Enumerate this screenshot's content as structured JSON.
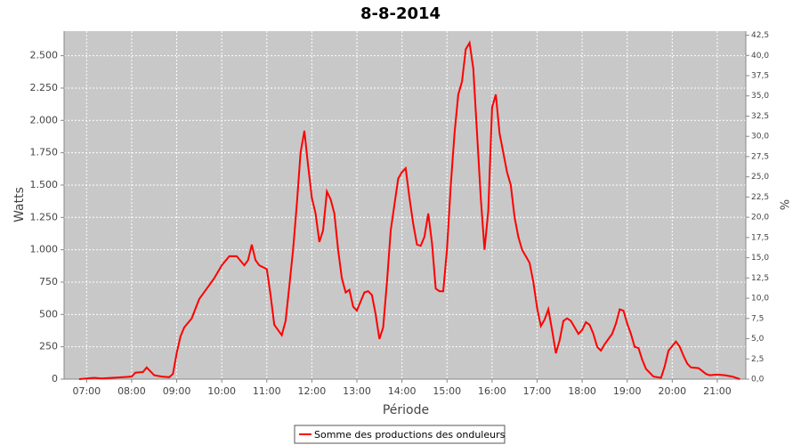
{
  "chart_data": {
    "type": "line",
    "title": "8-8-2014",
    "xlabel": "Période",
    "ylabel": "Watts",
    "y2label": "%",
    "x": [
      "06:50",
      "07:10",
      "07:20",
      "08:00",
      "08:05",
      "08:15",
      "08:20",
      "08:30",
      "08:40",
      "08:50",
      "08:55",
      "09:00",
      "09:05",
      "09:10",
      "09:20",
      "09:30",
      "09:40",
      "09:50",
      "10:00",
      "10:10",
      "10:20",
      "10:30",
      "10:35",
      "10:40",
      "10:45",
      "10:50",
      "11:00",
      "11:05",
      "11:10",
      "11:15",
      "11:20",
      "11:25",
      "11:30",
      "11:35",
      "11:40",
      "11:45",
      "11:50",
      "11:55",
      "12:00",
      "12:05",
      "12:10",
      "12:15",
      "12:20",
      "12:25",
      "12:30",
      "12:35",
      "12:40",
      "12:45",
      "12:50",
      "12:55",
      "13:00",
      "13:05",
      "13:10",
      "13:15",
      "13:20",
      "13:25",
      "13:30",
      "13:35",
      "13:40",
      "13:45",
      "13:50",
      "13:55",
      "14:00",
      "14:05",
      "14:10",
      "14:15",
      "14:20",
      "14:25",
      "14:30",
      "14:35",
      "14:40",
      "14:45",
      "14:50",
      "14:55",
      "15:00",
      "15:05",
      "15:10",
      "15:15",
      "15:20",
      "15:25",
      "15:30",
      "15:35",
      "15:40",
      "15:45",
      "15:50",
      "15:55",
      "16:00",
      "16:05",
      "16:10",
      "16:15",
      "16:20",
      "16:25",
      "16:30",
      "16:35",
      "16:40",
      "16:45",
      "16:50",
      "16:55",
      "17:00",
      "17:05",
      "17:10",
      "17:15",
      "17:20",
      "17:25",
      "17:30",
      "17:35",
      "17:40",
      "17:45",
      "17:50",
      "17:55",
      "18:00",
      "18:05",
      "18:10",
      "18:15",
      "18:20",
      "18:25",
      "18:30",
      "18:40",
      "18:45",
      "18:50",
      "18:55",
      "19:00",
      "19:05",
      "19:10",
      "19:15",
      "19:20",
      "19:25",
      "19:35",
      "19:45",
      "19:50",
      "19:55",
      "20:05",
      "20:10",
      "20:15",
      "20:20",
      "20:25",
      "20:35",
      "20:45",
      "20:50",
      "21:00",
      "21:10",
      "21:20",
      "21:30"
    ],
    "series": [
      {
        "name": "Somme des productions des onduleurs",
        "color": "#ff0000",
        "values": [
          0,
          10,
          5,
          20,
          50,
          55,
          90,
          30,
          20,
          15,
          40,
          200,
          330,
          400,
          470,
          620,
          700,
          780,
          880,
          950,
          950,
          880,
          920,
          1040,
          920,
          880,
          850,
          650,
          420,
          380,
          340,
          450,
          720,
          1000,
          1350,
          1750,
          1920,
          1650,
          1400,
          1280,
          1060,
          1150,
          1450,
          1390,
          1280,
          1000,
          780,
          670,
          690,
          560,
          530,
          600,
          670,
          680,
          650,
          500,
          310,
          400,
          750,
          1150,
          1350,
          1550,
          1600,
          1630,
          1400,
          1200,
          1040,
          1030,
          1100,
          1280,
          1050,
          700,
          680,
          680,
          1000,
          1500,
          1900,
          2200,
          2300,
          2550,
          2600,
          2400,
          1900,
          1400,
          1000,
          1300,
          2100,
          2200,
          1900,
          1750,
          1600,
          1500,
          1250,
          1100,
          1000,
          950,
          900,
          750,
          550,
          410,
          460,
          540,
          380,
          200,
          300,
          450,
          470,
          450,
          400,
          350,
          380,
          440,
          420,
          350,
          250,
          220,
          270,
          350,
          430,
          540,
          530,
          430,
          350,
          250,
          240,
          150,
          80,
          20,
          10,
          100,
          220,
          290,
          250,
          180,
          120,
          90,
          85,
          40,
          30,
          35,
          30,
          20,
          0
        ]
      }
    ],
    "xlim": [
      "06:30",
      "21:38"
    ],
    "xticks": [
      "07:00",
      "08:00",
      "09:00",
      "10:00",
      "11:00",
      "12:00",
      "13:00",
      "14:00",
      "15:00",
      "16:00",
      "17:00",
      "18:00",
      "19:00",
      "20:00",
      "21:00"
    ],
    "ylim": [
      0,
      2690
    ],
    "yticks": [
      0,
      250,
      500,
      750,
      {
        "value": 1000,
        "label": "1.000"
      },
      {
        "value": 1250,
        "label": "1.250"
      },
      {
        "value": 1500,
        "label": "1.500"
      },
      {
        "value": 1750,
        "label": "1.750"
      },
      {
        "value": 2000,
        "label": "2.000"
      },
      {
        "value": 2250,
        "label": "2.250"
      },
      {
        "value": 2500,
        "label": "2.500"
      }
    ],
    "y2lim": [
      0,
      43
    ],
    "y2ticks": [
      {
        "value": 0,
        "label": "0,0"
      },
      {
        "value": 2.5,
        "label": "2,5"
      },
      {
        "value": 5,
        "label": "5,0"
      },
      {
        "value": 7.5,
        "label": "7,5"
      },
      {
        "value": 10,
        "label": "10,0"
      },
      {
        "value": 12.5,
        "label": "12,5"
      },
      {
        "value": 15,
        "label": "15,0"
      },
      {
        "value": 17.5,
        "label": "17,5"
      },
      {
        "value": 20,
        "label": "20,0"
      },
      {
        "value": 22.5,
        "label": "22,5"
      },
      {
        "value": 25,
        "label": "25,0"
      },
      {
        "value": 27.5,
        "label": "27,5"
      },
      {
        "value": 30,
        "label": "30,0"
      },
      {
        "value": 32.5,
        "label": "32,5"
      },
      {
        "value": 35,
        "label": "35,0"
      },
      {
        "value": 37.5,
        "label": "37,5"
      },
      {
        "value": 40,
        "label": "40,0"
      },
      {
        "value": 42.5,
        "label": "42,5"
      }
    ],
    "grid": true
  }
}
